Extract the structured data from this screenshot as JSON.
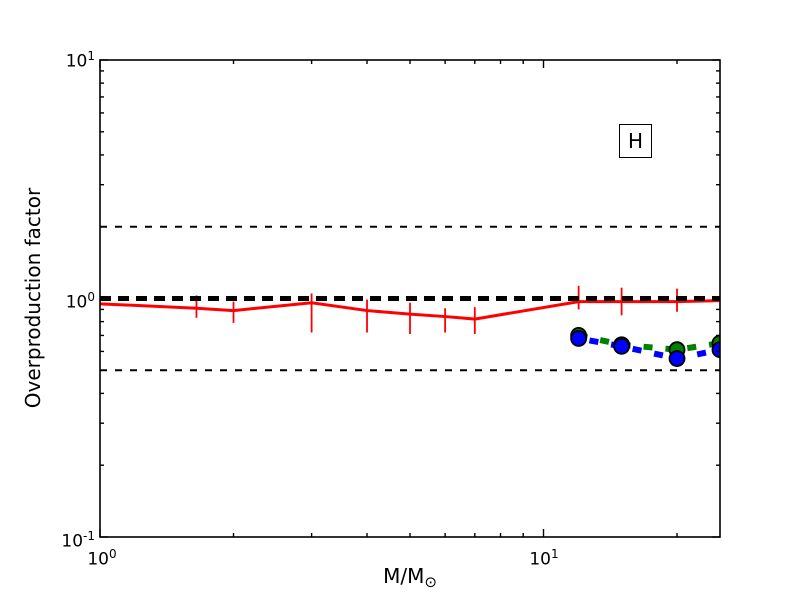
{
  "figure": {
    "background": "#ffffff",
    "annotation": {
      "label": "H"
    },
    "y_axis": {
      "label": "Overproduction factor",
      "major": [
        {
          "v": 0.1,
          "base": "10",
          "exp": "-1"
        },
        {
          "v": 1,
          "base": "10",
          "exp": "0"
        },
        {
          "v": 10,
          "base": "10",
          "exp": "1"
        }
      ],
      "minor": [
        0.2,
        0.3,
        0.4,
        0.5,
        0.6,
        0.7,
        0.8,
        0.9,
        2,
        3,
        4,
        5,
        6,
        7,
        8,
        9
      ]
    },
    "x_axis": {
      "label_main": "M/M",
      "label_sub": "⊙",
      "major": [
        {
          "v": 1,
          "base": "10",
          "exp": "0"
        },
        {
          "v": 10,
          "base": "10",
          "exp": "1"
        }
      ],
      "minor": [
        2,
        3,
        4,
        5,
        6,
        7,
        8,
        9,
        20
      ]
    }
  },
  "chart_data": {
    "type": "line",
    "title": "",
    "xlabel": "M/M_sun (solar masses)",
    "ylabel": "Overproduction factor",
    "xscale": "log",
    "yscale": "log",
    "xlim": [
      1,
      25
    ],
    "ylim": [
      0.1,
      10
    ],
    "grid": false,
    "annotation": "H",
    "reference_lines": [
      {
        "y": 1.0,
        "color": "#000000",
        "linestyle": "dashed",
        "linewidth": 5
      },
      {
        "y": 2.0,
        "color": "#000000",
        "linestyle": "dashed",
        "linewidth": 2
      },
      {
        "y": 0.5,
        "color": "#000000",
        "linestyle": "dashed",
        "linewidth": 2
      }
    ],
    "series": [
      {
        "name": "red-solid-with-errorbars",
        "color": "#ff0000",
        "linestyle": "solid",
        "linewidth": 3,
        "marker": "none",
        "x": [
          1.0,
          1.65,
          2,
          3,
          4,
          5,
          6,
          7,
          12,
          15,
          20,
          25
        ],
        "y": [
          0.95,
          0.91,
          0.89,
          0.96,
          0.89,
          0.86,
          0.84,
          0.82,
          0.97,
          0.97,
          0.97,
          0.98
        ],
        "yerr_hi": [
          null,
          1.03,
          0.97,
          1.05,
          0.99,
          0.96,
          0.91,
          0.92,
          1.13,
          1.11,
          1.1,
          null
        ],
        "yerr_lo": [
          null,
          0.83,
          0.79,
          0.72,
          0.72,
          0.71,
          0.72,
          0.71,
          0.9,
          0.85,
          0.88,
          null
        ]
      },
      {
        "name": "green-dashed-circles",
        "color": "#008000",
        "linestyle": "dashed",
        "linewidth": 6,
        "marker": "circle",
        "markersize": 15,
        "x": [
          12,
          15,
          20,
          25
        ],
        "y": [
          0.7,
          0.64,
          0.61,
          0.65
        ]
      },
      {
        "name": "blue-dashed-circles",
        "color": "#0000ff",
        "linestyle": "dashed",
        "linewidth": 6,
        "marker": "circle",
        "markersize": 15,
        "x": [
          12,
          15,
          20,
          25
        ],
        "y": [
          0.68,
          0.63,
          0.56,
          0.61
        ]
      }
    ]
  }
}
